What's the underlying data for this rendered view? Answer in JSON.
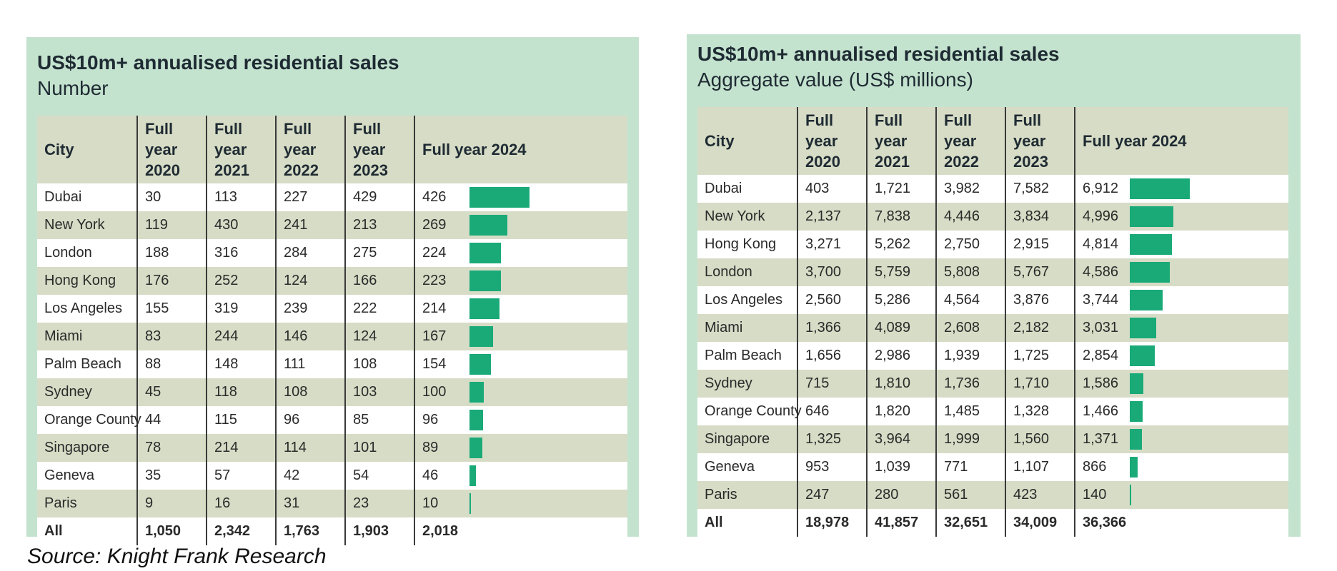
{
  "left_table": {
    "title": "US$10m+ annualised residential sales",
    "subtitle": "Number",
    "headers": [
      "City",
      "Full year 2020",
      "Full year 2021",
      "Full year 2022",
      "Full year 2023",
      "Full year 2024"
    ],
    "rows": [
      {
        "city": "Dubai",
        "values": [
          "30",
          "113",
          "227",
          "429",
          "426"
        ],
        "v2024": 426
      },
      {
        "city": "New York",
        "values": [
          "119",
          "430",
          "241",
          "213",
          "269"
        ],
        "v2024": 269
      },
      {
        "city": "London",
        "values": [
          "188",
          "316",
          "284",
          "275",
          "224"
        ],
        "v2024": 224
      },
      {
        "city": "Hong Kong",
        "values": [
          "176",
          "252",
          "124",
          "166",
          "223"
        ],
        "v2024": 223
      },
      {
        "city": "Los Angeles",
        "values": [
          "155",
          "319",
          "239",
          "222",
          "214"
        ],
        "v2024": 214
      },
      {
        "city": "Miami",
        "values": [
          "83",
          "244",
          "146",
          "124",
          "167"
        ],
        "v2024": 167
      },
      {
        "city": "Palm Beach",
        "values": [
          "88",
          "148",
          "111",
          "108",
          "154"
        ],
        "v2024": 154
      },
      {
        "city": "Sydney",
        "values": [
          "45",
          "118",
          "108",
          "103",
          "100"
        ],
        "v2024": 100
      },
      {
        "city": "Orange County",
        "values": [
          "44",
          "115",
          "96",
          "85",
          "96"
        ],
        "v2024": 96
      },
      {
        "city": "Singapore",
        "values": [
          "78",
          "214",
          "114",
          "101",
          "89"
        ],
        "v2024": 89
      },
      {
        "city": "Geneva",
        "values": [
          "35",
          "57",
          "42",
          "54",
          "46"
        ],
        "v2024": 46
      },
      {
        "city": "Paris",
        "values": [
          "9",
          "16",
          "31",
          "23",
          "10"
        ],
        "v2024": 10
      }
    ],
    "total": {
      "city": "All",
      "values": [
        "1,050",
        "2,342",
        "1,763",
        "1,903",
        "2,018"
      ]
    },
    "bar_max": 426
  },
  "right_table": {
    "title": "US$10m+ annualised residential sales",
    "subtitle": "Aggregate value (US$ millions)",
    "headers": [
      "City",
      "Full year 2020",
      "Full year 2021",
      "Full year 2022",
      "Full year 2023",
      "Full year 2024"
    ],
    "rows": [
      {
        "city": "Dubai",
        "values": [
          "403",
          "1,721",
          "3,982",
          "7,582",
          "6,912"
        ],
        "v2024": 6912
      },
      {
        "city": "New York",
        "values": [
          "2,137",
          "7,838",
          "4,446",
          "3,834",
          "4,996"
        ],
        "v2024": 4996
      },
      {
        "city": "Hong Kong",
        "values": [
          "3,271",
          "5,262",
          "2,750",
          "2,915",
          "4,814"
        ],
        "v2024": 4814
      },
      {
        "city": "London",
        "values": [
          "3,700",
          "5,759",
          "5,808",
          "5,767",
          "4,586"
        ],
        "v2024": 4586
      },
      {
        "city": "Los Angeles",
        "values": [
          "2,560",
          "5,286",
          "4,564",
          "3,876",
          "3,744"
        ],
        "v2024": 3744
      },
      {
        "city": "Miami",
        "values": [
          "1,366",
          "4,089",
          "2,608",
          "2,182",
          "3,031"
        ],
        "v2024": 3031
      },
      {
        "city": "Palm Beach",
        "values": [
          "1,656",
          "2,986",
          "1,939",
          "1,725",
          "2,854"
        ],
        "v2024": 2854
      },
      {
        "city": "Sydney",
        "values": [
          "715",
          "1,810",
          "1,736",
          "1,710",
          "1,586"
        ],
        "v2024": 1586
      },
      {
        "city": "Orange County",
        "values": [
          "646",
          "1,820",
          "1,485",
          "1,328",
          "1,466"
        ],
        "v2024": 1466
      },
      {
        "city": "Singapore",
        "values": [
          "1,325",
          "3,964",
          "1,999",
          "1,560",
          "1,371"
        ],
        "v2024": 1371
      },
      {
        "city": "Geneva",
        "values": [
          "953",
          "1,039",
          "771",
          "1,107",
          "866"
        ],
        "v2024": 866
      },
      {
        "city": "Paris",
        "values": [
          "247",
          "280",
          "561",
          "423",
          "140"
        ],
        "v2024": 140
      }
    ],
    "total": {
      "city": "All",
      "values": [
        "18,978",
        "41,857",
        "32,651",
        "34,009",
        "36,366"
      ]
    },
    "bar_max": 6912
  },
  "source": "Source: Knight Frank Research",
  "colors": {
    "panel_bg": "#c4e3cf",
    "bar": "#1aaa78",
    "stripe": "#d7dcc6"
  }
}
